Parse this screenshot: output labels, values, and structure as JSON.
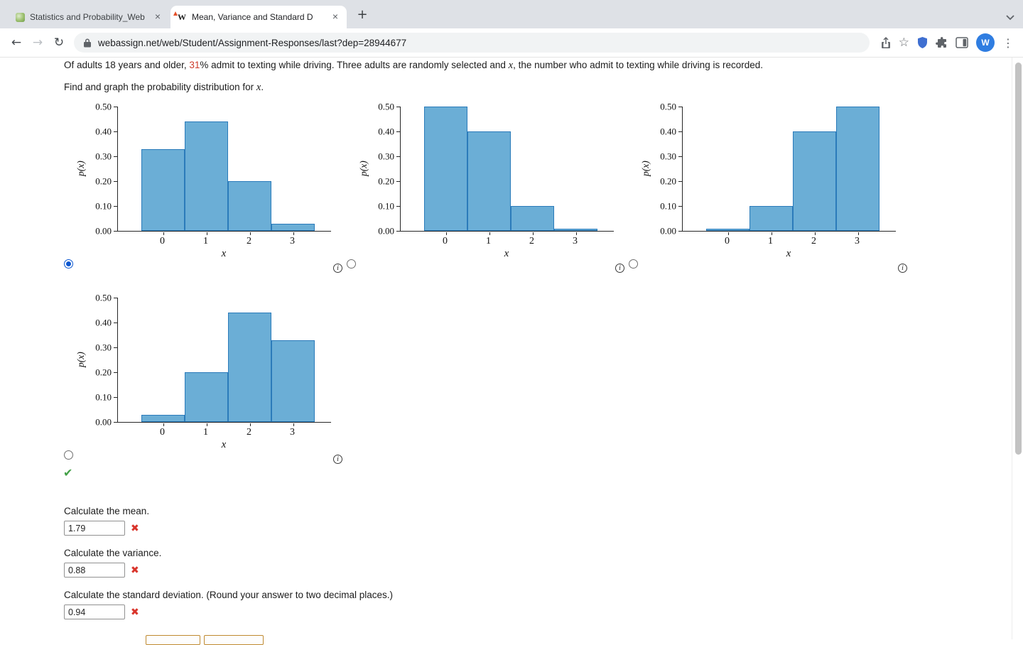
{
  "browser": {
    "tabs": [
      {
        "title": "Statistics and Probability_Web",
        "active": false
      },
      {
        "title": "Mean, Variance and Standard D",
        "active": true
      }
    ],
    "url": "webassign.net/web/Student/Assignment-Responses/last?dep=28944677",
    "avatar_letter": "W",
    "webassign_favicon_letter": "W"
  },
  "icons": {
    "back": "←",
    "forward": "→",
    "reload": "↻",
    "close": "×",
    "new_tab": "+",
    "star": "☆",
    "menu": "⋮",
    "cross": "✖",
    "check": "✔",
    "info": "i"
  },
  "question": {
    "p1": "Of adults 18 years and older, ",
    "percent": "31",
    "p2": "% admit to texting while driving. Three adults are randomly selected and ",
    "var": "x",
    "p3": ", the number who admit to texting while driving is recorded.",
    "instr1": "Find and graph the probability distribution for ",
    "instr_var": "x",
    "instr2": "."
  },
  "chart_data": [
    {
      "type": "bar",
      "categories": [
        "0",
        "1",
        "2",
        "3"
      ],
      "values": [
        0.33,
        0.44,
        0.2,
        0.03
      ],
      "xlabel": "x",
      "ylabel": "p(x)",
      "ylim": [
        0,
        0.5
      ],
      "ytick_labels": [
        "0.50",
        "0.40",
        "0.30",
        "0.20",
        "0.10",
        "0.00"
      ],
      "grid": false,
      "selected": true
    },
    {
      "type": "bar",
      "categories": [
        "0",
        "1",
        "2",
        "3"
      ],
      "values": [
        0.5,
        0.4,
        0.1,
        0.01
      ],
      "xlabel": "x",
      "ylabel": "p(x)",
      "ylim": [
        0,
        0.5
      ],
      "ytick_labels": [
        "0.50",
        "0.40",
        "0.30",
        "0.20",
        "0.10",
        "0.00"
      ],
      "grid": false,
      "selected": false
    },
    {
      "type": "bar",
      "categories": [
        "0",
        "1",
        "2",
        "3"
      ],
      "values": [
        0.01,
        0.1,
        0.4,
        0.5
      ],
      "xlabel": "x",
      "ylabel": "p(x)",
      "ylim": [
        0,
        0.5
      ],
      "ytick_labels": [
        "0.50",
        "0.40",
        "0.30",
        "0.20",
        "0.10",
        "0.00"
      ],
      "grid": false,
      "selected": false
    },
    {
      "type": "bar",
      "categories": [
        "0",
        "1",
        "2",
        "3"
      ],
      "values": [
        0.03,
        0.2,
        0.44,
        0.33
      ],
      "xlabel": "x",
      "ylabel": "p(x)",
      "ylim": [
        0,
        0.5
      ],
      "ytick_labels": [
        "0.50",
        "0.40",
        "0.30",
        "0.20",
        "0.10",
        "0.00"
      ],
      "grid": false,
      "selected": false
    }
  ],
  "options": [
    {
      "selected": true
    },
    {
      "selected": false
    },
    {
      "selected": false
    },
    {
      "selected": false
    }
  ],
  "result": {
    "graph_answer": "correct"
  },
  "answers": [
    {
      "label": "Calculate the mean.",
      "value": "1.79",
      "status": "incorrect"
    },
    {
      "label": "Calculate the variance.",
      "value": "0.88",
      "status": "incorrect"
    },
    {
      "label": "Calculate the standard deviation. (Round your answer to two decimal places.)",
      "value": "0.94",
      "status": "incorrect"
    }
  ],
  "colors": {
    "percent_highlight": "#cc3b2b",
    "bar_fill": "#6baed6",
    "bar_edge": "#2b7bba",
    "error": "#d9342b",
    "success": "#43a047",
    "avatar_bg": "#2f7de1"
  }
}
